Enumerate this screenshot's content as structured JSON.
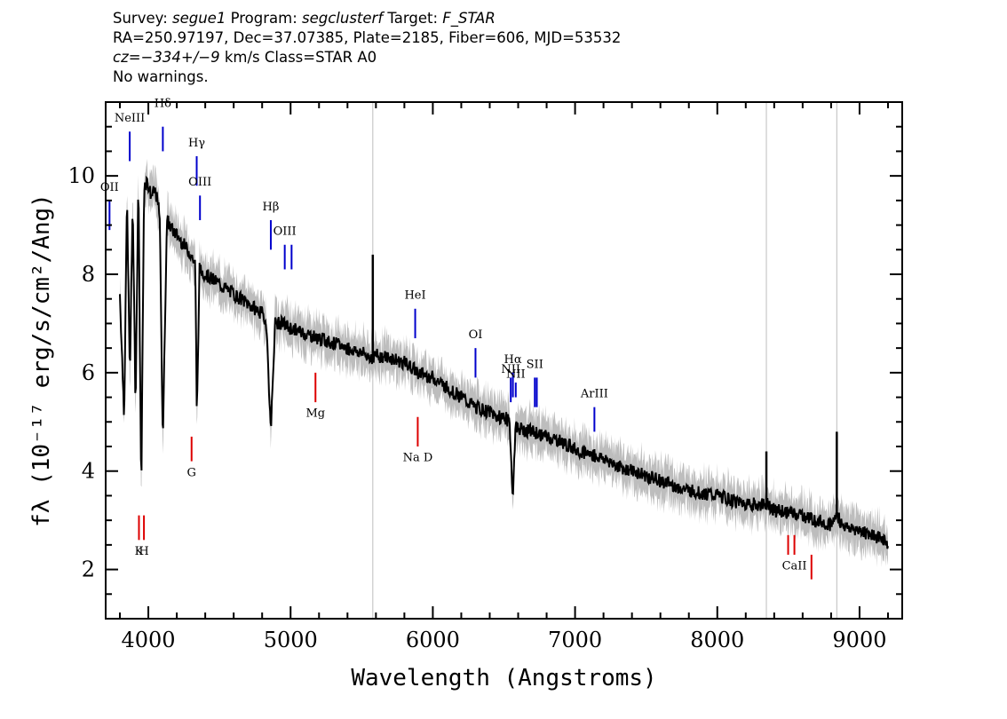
{
  "header": {
    "line1": {
      "survey_label": "Survey: ",
      "survey": "segue1",
      "program_label": " Program: ",
      "program": "segclusterf",
      "target_label": " Target: ",
      "target": "F_STAR"
    },
    "line2": "RA=250.97197, Dec=37.07385, Plate=2185, Fiber=606, MJD=53532",
    "line3": {
      "cz": "cz=−334+/−9",
      "rest": " km/s Class=STAR A0"
    },
    "line4": "No warnings."
  },
  "chart_data": {
    "type": "line",
    "xlabel": "Wavelength (Angstroms)",
    "ylabel": "fλ (10⁻¹⁷ erg/s/cm²/Ang)",
    "xlim": [
      3700,
      9300
    ],
    "ylim": [
      1.0,
      11.5
    ],
    "x_ticks": [
      4000,
      5000,
      6000,
      7000,
      8000,
      9000
    ],
    "y_ticks": [
      2,
      4,
      6,
      8,
      10
    ],
    "grid": false,
    "legend": "none",
    "colors": {
      "flux": "#000000",
      "error_band": "#bdbdbd",
      "emission_marker": "#0000cc",
      "absorption_marker": "#dd0000"
    },
    "series": [
      {
        "x": [
          3800,
          3830,
          3850,
          3870,
          3890,
          3910,
          3930,
          3950,
          3970,
          3990,
          4020,
          4050,
          4080,
          4102,
          4130,
          4170,
          4200,
          4250,
          4300,
          4330,
          4341,
          4360,
          4400,
          4450,
          4500,
          4550,
          4600,
          4650,
          4700,
          4750,
          4800,
          4830,
          4861,
          4890,
          4950,
          5000,
          5100,
          5200,
          5300,
          5400,
          5500,
          5580,
          5600,
          5700,
          5800,
          5900,
          6000,
          6100,
          6200,
          6300,
          6400,
          6450,
          6500,
          6540,
          6563,
          6580,
          6620,
          6700,
          6800,
          6900,
          7000,
          7100,
          7200,
          7250,
          7300,
          7400,
          7500,
          7600,
          7700,
          7800,
          7900,
          8000,
          8100,
          8200,
          8300,
          8350,
          8400,
          8500,
          8600,
          8700,
          8800,
          8840,
          8900,
          9000,
          9100,
          9200
        ],
        "y": [
          7.6,
          5.1,
          9.6,
          5.9,
          9.5,
          5.3,
          10.0,
          3.5,
          9.8,
          9.9,
          9.6,
          9.7,
          9.2,
          4.6,
          9.1,
          8.9,
          8.8,
          8.6,
          8.4,
          8.2,
          5.1,
          8.1,
          8.0,
          7.9,
          7.8,
          7.7,
          7.6,
          7.5,
          7.4,
          7.3,
          7.2,
          7.0,
          4.8,
          7.0,
          7.0,
          6.9,
          6.8,
          6.7,
          6.6,
          6.5,
          6.4,
          6.3,
          6.35,
          6.3,
          6.2,
          6.0,
          5.9,
          5.7,
          5.5,
          5.3,
          5.2,
          5.1,
          5.1,
          5.0,
          3.4,
          4.9,
          4.85,
          4.8,
          4.7,
          4.6,
          4.45,
          4.35,
          4.25,
          4.2,
          4.1,
          4.0,
          3.9,
          3.8,
          3.7,
          3.6,
          3.55,
          3.5,
          3.4,
          3.35,
          3.3,
          3.35,
          3.2,
          3.15,
          3.1,
          3.0,
          2.9,
          3.1,
          2.85,
          2.8,
          2.7,
          2.55
        ],
        "error": 0.35
      }
    ],
    "spikes": [
      {
        "x": 5578,
        "y": 8.4
      },
      {
        "x": 8345,
        "y": 4.4
      },
      {
        "x": 8840,
        "y": 4.8
      }
    ],
    "emission_lines": [
      {
        "label": "OII",
        "x": 3727,
        "y_low": 8.9,
        "y_high": 9.5,
        "label_y": 9.7
      },
      {
        "label": "NeIII",
        "x": 3869,
        "y_low": 10.3,
        "y_high": 10.9,
        "label_y": 11.1
      },
      {
        "label": "Hδ",
        "x": 4102,
        "y_low": 10.5,
        "y_high": 11.0,
        "label_y": 11.4
      },
      {
        "label": "Hγ",
        "x": 4340,
        "y_low": 9.8,
        "y_high": 10.4,
        "label_y": 10.6
      },
      {
        "label": "OIII",
        "x": 4363,
        "y_low": 9.1,
        "y_high": 9.6,
        "label_y": 9.8
      },
      {
        "label": "Hβ",
        "x": 4861,
        "y_low": 8.5,
        "y_high": 9.1,
        "label_y": 9.3
      },
      {
        "label": "OIII",
        "x": 4959,
        "y_low": 8.1,
        "y_high": 8.6,
        "label_y": 8.8
      },
      {
        "label": "",
        "x": 5007,
        "y_low": 8.1,
        "y_high": 8.6,
        "label_y": 8.8
      },
      {
        "label": "HeI",
        "x": 5876,
        "y_low": 6.7,
        "y_high": 7.3,
        "label_y": 7.5
      },
      {
        "label": "OI",
        "x": 6300,
        "y_low": 5.9,
        "y_high": 6.5,
        "label_y": 6.7
      },
      {
        "label": "NII",
        "x": 6548,
        "y_low": 5.4,
        "y_high": 5.9,
        "label_y": 6.0
      },
      {
        "label": "Hα",
        "x": 6563,
        "y_low": 5.5,
        "y_high": 6.0,
        "label_y": 6.2
      },
      {
        "label": "NII",
        "x": 6583,
        "y_low": 5.5,
        "y_high": 5.8,
        "label_y": 5.9
      },
      {
        "label": "SII",
        "x": 6717,
        "y_low": 5.3,
        "y_high": 5.9,
        "label_y": 6.1
      },
      {
        "label": "",
        "x": 6731,
        "y_low": 5.3,
        "y_high": 5.9,
        "label_y": 6.1
      },
      {
        "label": "ArIII",
        "x": 7136,
        "y_low": 4.8,
        "y_high": 5.3,
        "label_y": 5.5
      }
    ],
    "absorption_lines": [
      {
        "label": "K",
        "x": 3934,
        "y_low": 2.6,
        "y_high": 3.1,
        "label_y": 2.3
      },
      {
        "label": "H",
        "x": 3969,
        "y_low": 2.6,
        "y_high": 3.1,
        "label_y": 2.3
      },
      {
        "label": "G",
        "x": 4304,
        "y_low": 4.2,
        "y_high": 4.7,
        "label_y": 3.9
      },
      {
        "label": "Mg",
        "x": 5175,
        "y_low": 5.4,
        "y_high": 6.0,
        "label_y": 5.1
      },
      {
        "label": "Na D",
        "x": 5894,
        "y_low": 4.5,
        "y_high": 5.1,
        "label_y": 4.2
      },
      {
        "label": "",
        "x": 8498,
        "y_low": 2.3,
        "y_high": 2.7,
        "label_y": 2.0
      },
      {
        "label": "CaII",
        "x": 8542,
        "y_low": 2.3,
        "y_high": 2.7,
        "label_y": 2.0
      },
      {
        "label": "",
        "x": 8662,
        "y_low": 1.8,
        "y_high": 2.3,
        "label_y": 1.6
      }
    ]
  }
}
